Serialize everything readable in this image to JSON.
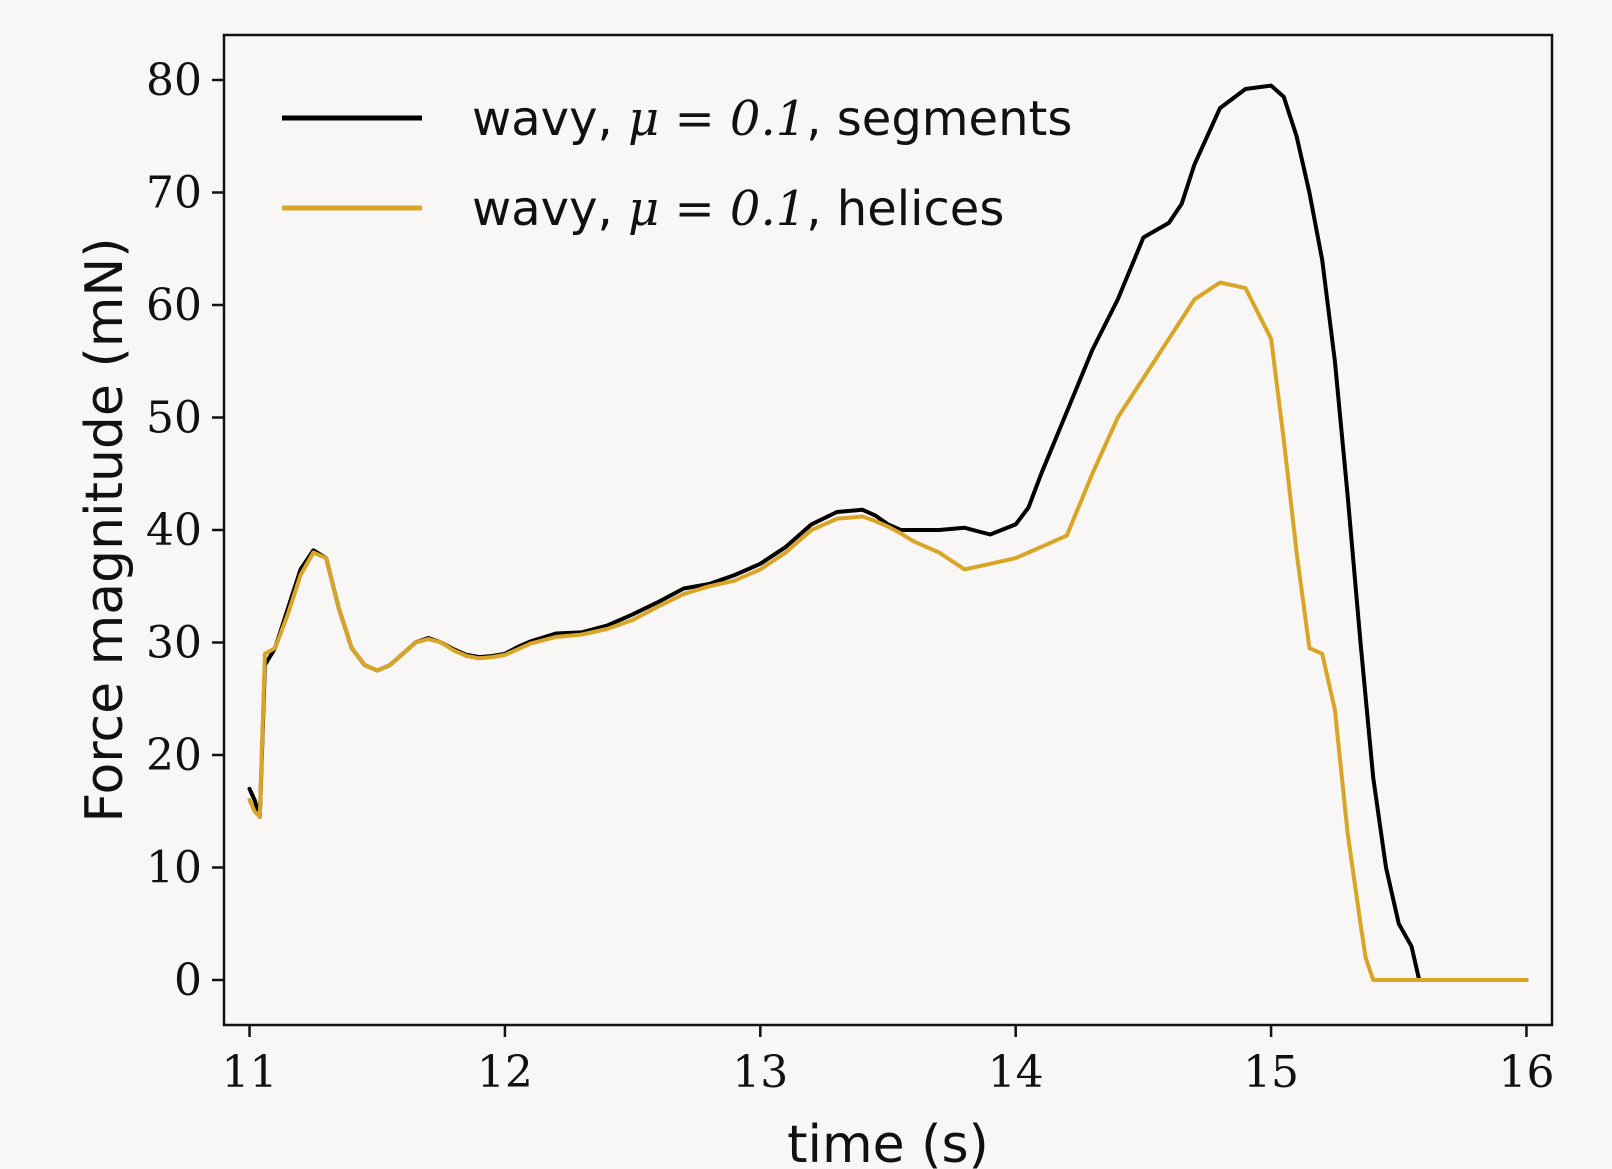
{
  "chart_data": {
    "type": "line",
    "title": "",
    "xlabel": "time (s)",
    "ylabel": "Force magnitude (mN)",
    "xlim": [
      10.9,
      16.1
    ],
    "ylim": [
      -4,
      84
    ],
    "xticks": [
      "11",
      "12",
      "13",
      "14",
      "15",
      "16"
    ],
    "yticks": [
      "0",
      "10",
      "20",
      "30",
      "40",
      "50",
      "60",
      "70",
      "80"
    ],
    "grid": false,
    "legend_position": "top-left",
    "series": [
      {
        "name": "wavy, μ = 0.1, segments",
        "legend_prefix": "wavy, ",
        "legend_math": "μ = 0.1",
        "legend_suffix": ", segments",
        "color": "#000000",
        "x": [
          11.0,
          11.02,
          11.04,
          11.06,
          11.1,
          11.15,
          11.2,
          11.25,
          11.3,
          11.35,
          11.4,
          11.45,
          11.5,
          11.55,
          11.6,
          11.65,
          11.7,
          11.75,
          11.8,
          11.85,
          11.9,
          11.95,
          12.0,
          12.05,
          12.1,
          12.2,
          12.3,
          12.4,
          12.5,
          12.6,
          12.7,
          12.8,
          12.9,
          13.0,
          13.1,
          13.2,
          13.3,
          13.4,
          13.45,
          13.5,
          13.55,
          13.6,
          13.7,
          13.8,
          13.9,
          14.0,
          14.05,
          14.1,
          14.2,
          14.3,
          14.4,
          14.5,
          14.6,
          14.65,
          14.7,
          14.8,
          14.9,
          15.0,
          15.05,
          15.1,
          15.15,
          15.2,
          15.25,
          15.3,
          15.35,
          15.4,
          15.45,
          15.5,
          15.55,
          15.58,
          15.6,
          15.63,
          15.7,
          15.8,
          16.0
        ],
        "y": [
          17.0,
          16.0,
          14.5,
          28.0,
          29.5,
          33.0,
          36.5,
          38.2,
          37.5,
          33.0,
          29.5,
          28.0,
          27.5,
          28.0,
          29.0,
          30.0,
          30.4,
          30.0,
          29.4,
          28.9,
          28.7,
          28.8,
          29.0,
          29.6,
          30.1,
          30.8,
          30.9,
          31.5,
          32.5,
          33.6,
          34.8,
          35.2,
          36.0,
          37.0,
          38.5,
          40.5,
          41.6,
          41.8,
          41.3,
          40.5,
          40.0,
          40.0,
          40.0,
          40.2,
          39.6,
          40.5,
          42.0,
          45.0,
          50.5,
          56.0,
          60.5,
          66.0,
          67.3,
          69.0,
          72.5,
          77.5,
          79.2,
          79.5,
          78.5,
          75.0,
          70.0,
          64.0,
          55.0,
          43.0,
          30.0,
          18.0,
          10.0,
          5.0,
          3.0,
          0.0,
          0.0,
          0.0,
          0.0,
          0.0,
          0.0
        ]
      },
      {
        "name": "wavy, μ = 0.1, helices",
        "legend_prefix": "wavy, ",
        "legend_math": "μ = 0.1",
        "legend_suffix": ", helices",
        "color": "#D9A527",
        "x": [
          11.0,
          11.02,
          11.04,
          11.06,
          11.1,
          11.15,
          11.2,
          11.25,
          11.3,
          11.35,
          11.4,
          11.45,
          11.5,
          11.55,
          11.6,
          11.65,
          11.7,
          11.75,
          11.8,
          11.85,
          11.9,
          11.95,
          12.0,
          12.05,
          12.1,
          12.2,
          12.3,
          12.4,
          12.5,
          12.6,
          12.7,
          12.8,
          12.9,
          13.0,
          13.1,
          13.2,
          13.3,
          13.4,
          13.45,
          13.5,
          13.55,
          13.6,
          13.7,
          13.8,
          13.9,
          14.0,
          14.05,
          14.1,
          14.2,
          14.3,
          14.4,
          14.5,
          14.6,
          14.7,
          14.8,
          14.9,
          15.0,
          15.05,
          15.1,
          15.15,
          15.2,
          15.25,
          15.3,
          15.35,
          15.37,
          15.4,
          15.45,
          15.5,
          15.55,
          15.6,
          15.7,
          15.8,
          16.0
        ],
        "y": [
          16.0,
          15.0,
          14.5,
          29.0,
          29.5,
          32.5,
          36.0,
          38.0,
          37.5,
          33.0,
          29.5,
          28.0,
          27.5,
          28.0,
          29.0,
          30.0,
          30.3,
          30.0,
          29.3,
          28.8,
          28.6,
          28.7,
          28.9,
          29.4,
          29.9,
          30.5,
          30.7,
          31.2,
          32.0,
          33.2,
          34.3,
          35.0,
          35.5,
          36.5,
          38.0,
          40.0,
          41.0,
          41.2,
          40.8,
          40.3,
          39.7,
          39.0,
          38.0,
          36.5,
          37.0,
          37.5,
          38.0,
          38.5,
          39.5,
          45.0,
          50.0,
          53.5,
          57.0,
          60.5,
          62.0,
          61.5,
          57.0,
          48.0,
          38.0,
          29.5,
          29.0,
          24.0,
          13.0,
          5.0,
          2.0,
          0.0,
          0.0,
          0.0,
          0.0,
          0.0,
          0.0,
          0.0,
          0.0
        ]
      }
    ]
  }
}
